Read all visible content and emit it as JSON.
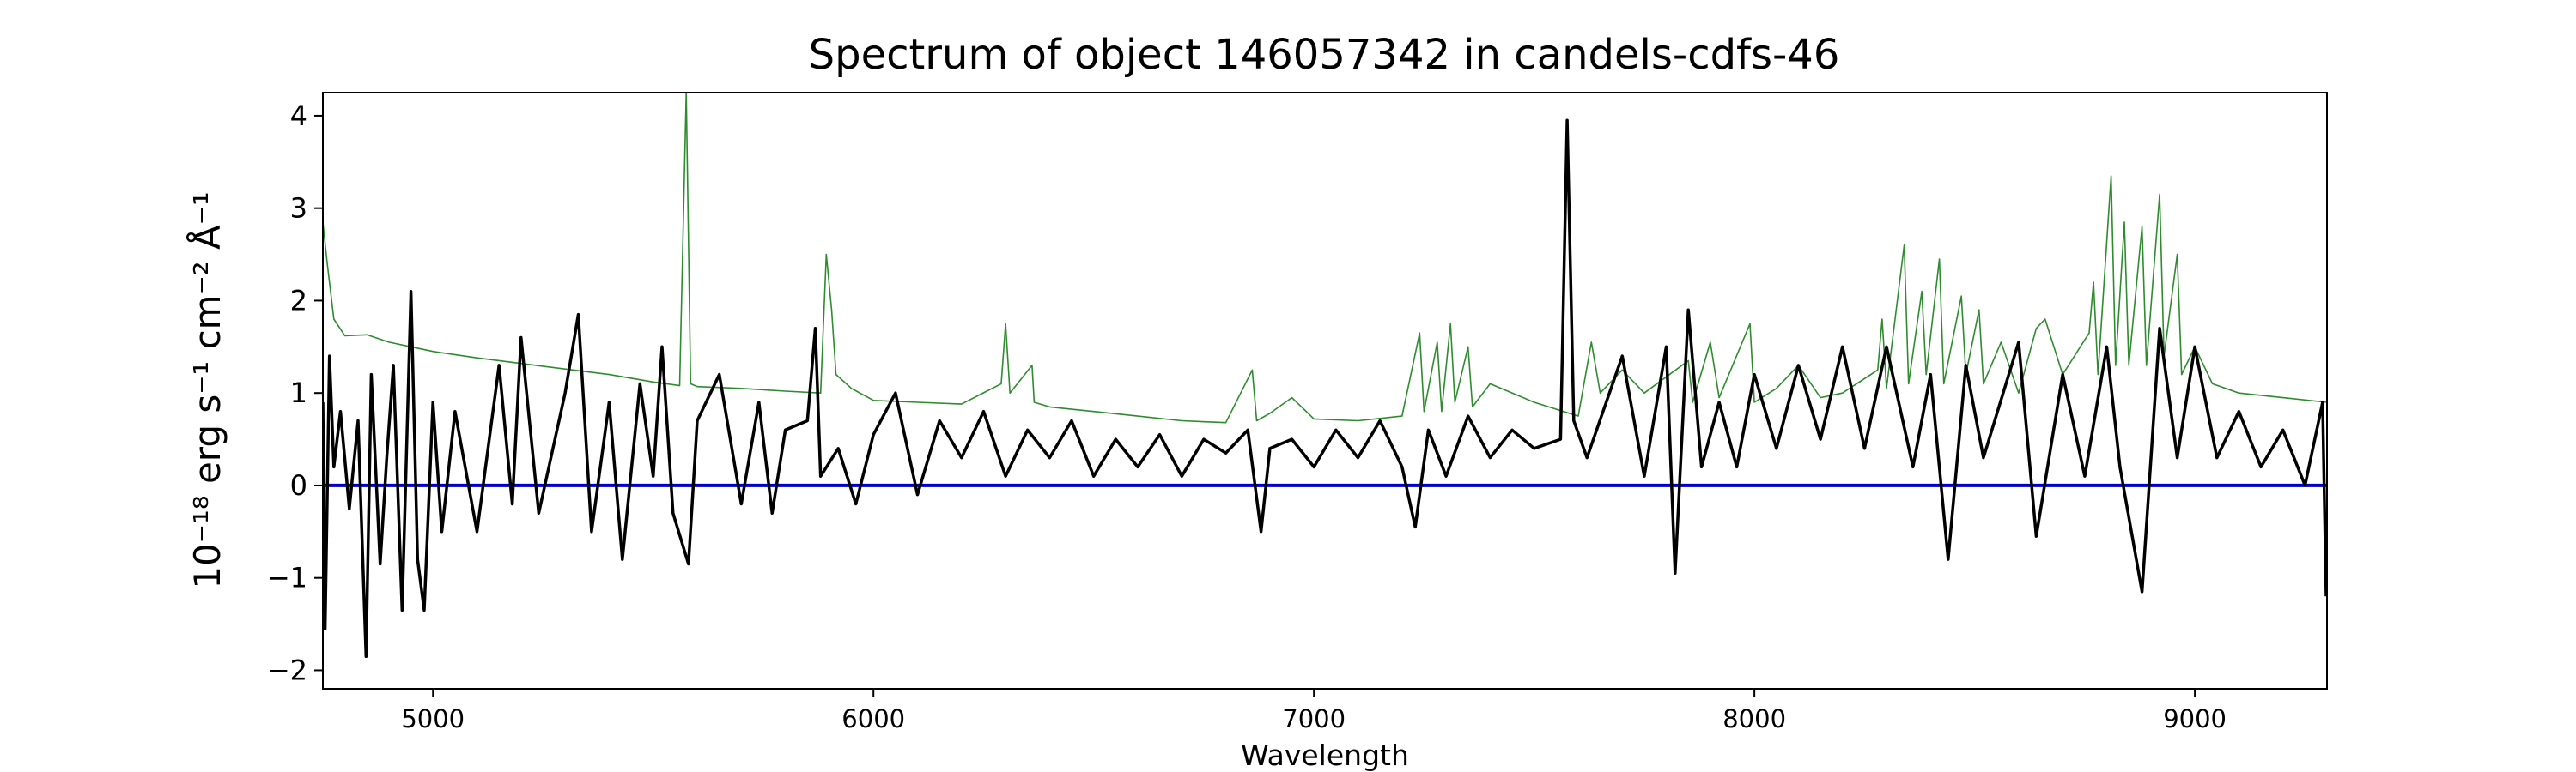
{
  "chart_data": {
    "type": "line",
    "title": "Spectrum of object 146057342 in candels-cdfs-46",
    "xlabel": "Wavelength",
    "ylabel": "10⁻¹⁸ erg s⁻¹ cm⁻² Å⁻¹",
    "xlim": [
      4750,
      9300
    ],
    "ylim": [
      -2.2,
      4.25
    ],
    "xticks": [
      5000,
      6000,
      7000,
      8000,
      9000
    ],
    "yticks": [
      -2,
      -1,
      0,
      1,
      2,
      3,
      4
    ],
    "grid": false,
    "legend": "none",
    "series": [
      {
        "role": "model/sky",
        "color": "#2e8b2e",
        "points": [
          [
            4750,
            2.85
          ],
          [
            4760,
            2.4
          ],
          [
            4775,
            1.8
          ],
          [
            4800,
            1.62
          ],
          [
            4850,
            1.63
          ],
          [
            4900,
            1.55
          ],
          [
            4950,
            1.5
          ],
          [
            5000,
            1.45
          ],
          [
            5100,
            1.38
          ],
          [
            5200,
            1.32
          ],
          [
            5300,
            1.26
          ],
          [
            5400,
            1.2
          ],
          [
            5500,
            1.12
          ],
          [
            5560,
            1.08
          ],
          [
            5575,
            4.25
          ],
          [
            5585,
            1.1
          ],
          [
            5600,
            1.07
          ],
          [
            5700,
            1.05
          ],
          [
            5800,
            1.02
          ],
          [
            5880,
            1.0
          ],
          [
            5893,
            2.5
          ],
          [
            5905,
            1.9
          ],
          [
            5915,
            1.2
          ],
          [
            5950,
            1.05
          ],
          [
            6000,
            0.92
          ],
          [
            6100,
            0.9
          ],
          [
            6200,
            0.88
          ],
          [
            6290,
            1.1
          ],
          [
            6300,
            1.75
          ],
          [
            6310,
            1.0
          ],
          [
            6360,
            1.3
          ],
          [
            6365,
            0.9
          ],
          [
            6400,
            0.85
          ],
          [
            6500,
            0.8
          ],
          [
            6600,
            0.75
          ],
          [
            6700,
            0.7
          ],
          [
            6800,
            0.68
          ],
          [
            6860,
            1.25
          ],
          [
            6870,
            0.7
          ],
          [
            6900,
            0.78
          ],
          [
            6950,
            0.95
          ],
          [
            7000,
            0.72
          ],
          [
            7100,
            0.7
          ],
          [
            7200,
            0.75
          ],
          [
            7240,
            1.65
          ],
          [
            7250,
            0.8
          ],
          [
            7280,
            1.55
          ],
          [
            7290,
            0.8
          ],
          [
            7310,
            1.75
          ],
          [
            7320,
            0.9
          ],
          [
            7350,
            1.5
          ],
          [
            7360,
            0.85
          ],
          [
            7400,
            1.1
          ],
          [
            7500,
            0.9
          ],
          [
            7600,
            0.75
          ],
          [
            7630,
            1.55
          ],
          [
            7650,
            1.0
          ],
          [
            7700,
            1.25
          ],
          [
            7750,
            1.0
          ],
          [
            7850,
            1.35
          ],
          [
            7860,
            0.9
          ],
          [
            7900,
            1.55
          ],
          [
            7920,
            0.95
          ],
          [
            7990,
            1.75
          ],
          [
            8000,
            0.9
          ],
          [
            8050,
            1.05
          ],
          [
            8100,
            1.3
          ],
          [
            8150,
            0.95
          ],
          [
            8200,
            1.0
          ],
          [
            8280,
            1.25
          ],
          [
            8290,
            1.8
          ],
          [
            8300,
            1.05
          ],
          [
            8340,
            2.6
          ],
          [
            8350,
            1.1
          ],
          [
            8380,
            2.1
          ],
          [
            8390,
            1.2
          ],
          [
            8420,
            2.45
          ],
          [
            8430,
            1.1
          ],
          [
            8470,
            2.05
          ],
          [
            8480,
            1.2
          ],
          [
            8510,
            1.9
          ],
          [
            8520,
            1.1
          ],
          [
            8560,
            1.55
          ],
          [
            8600,
            1.0
          ],
          [
            8640,
            1.7
          ],
          [
            8660,
            1.8
          ],
          [
            8700,
            1.2
          ],
          [
            8760,
            1.65
          ],
          [
            8770,
            2.2
          ],
          [
            8780,
            1.2
          ],
          [
            8810,
            3.35
          ],
          [
            8820,
            1.3
          ],
          [
            8840,
            2.85
          ],
          [
            8850,
            1.3
          ],
          [
            8880,
            2.8
          ],
          [
            8890,
            1.3
          ],
          [
            8920,
            3.15
          ],
          [
            8930,
            1.4
          ],
          [
            8960,
            2.5
          ],
          [
            8970,
            1.2
          ],
          [
            9000,
            1.5
          ],
          [
            9040,
            1.1
          ],
          [
            9100,
            1.0
          ],
          [
            9200,
            0.95
          ],
          [
            9300,
            0.9
          ]
        ]
      },
      {
        "role": "zero line",
        "color": "#0000cc",
        "points": [
          [
            4750,
            0
          ],
          [
            9300,
            0
          ]
        ]
      },
      {
        "role": "flux",
        "color": "#000000",
        "points": [
          [
            4750,
            0.9
          ],
          [
            4755,
            -1.55
          ],
          [
            4765,
            1.4
          ],
          [
            4775,
            0.2
          ],
          [
            4790,
            0.8
          ],
          [
            4810,
            -0.25
          ],
          [
            4830,
            0.7
          ],
          [
            4848,
            -1.85
          ],
          [
            4860,
            1.2
          ],
          [
            4880,
            -0.85
          ],
          [
            4895,
            0.3
          ],
          [
            4910,
            1.3
          ],
          [
            4930,
            -1.35
          ],
          [
            4950,
            2.1
          ],
          [
            4965,
            -0.8
          ],
          [
            4980,
            -1.35
          ],
          [
            5000,
            0.9
          ],
          [
            5020,
            -0.5
          ],
          [
            5050,
            0.8
          ],
          [
            5100,
            -0.5
          ],
          [
            5150,
            1.3
          ],
          [
            5180,
            -0.2
          ],
          [
            5200,
            1.6
          ],
          [
            5240,
            -0.3
          ],
          [
            5300,
            1.0
          ],
          [
            5330,
            1.85
          ],
          [
            5360,
            -0.5
          ],
          [
            5400,
            0.9
          ],
          [
            5430,
            -0.8
          ],
          [
            5470,
            1.1
          ],
          [
            5500,
            0.1
          ],
          [
            5520,
            1.5
          ],
          [
            5545,
            -0.3
          ],
          [
            5580,
            -0.85
          ],
          [
            5600,
            0.7
          ],
          [
            5650,
            1.2
          ],
          [
            5700,
            -0.2
          ],
          [
            5740,
            0.9
          ],
          [
            5770,
            -0.3
          ],
          [
            5800,
            0.6
          ],
          [
            5850,
            0.7
          ],
          [
            5868,
            1.7
          ],
          [
            5880,
            0.1
          ],
          [
            5920,
            0.4
          ],
          [
            5960,
            -0.2
          ],
          [
            6000,
            0.55
          ],
          [
            6050,
            1.0
          ],
          [
            6100,
            -0.1
          ],
          [
            6150,
            0.7
          ],
          [
            6200,
            0.3
          ],
          [
            6250,
            0.8
          ],
          [
            6300,
            0.1
          ],
          [
            6350,
            0.6
          ],
          [
            6400,
            0.3
          ],
          [
            6450,
            0.7
          ],
          [
            6500,
            0.1
          ],
          [
            6550,
            0.5
          ],
          [
            6600,
            0.2
          ],
          [
            6650,
            0.55
          ],
          [
            6700,
            0.1
          ],
          [
            6750,
            0.5
          ],
          [
            6800,
            0.35
          ],
          [
            6850,
            0.6
          ],
          [
            6880,
            -0.5
          ],
          [
            6900,
            0.4
          ],
          [
            6950,
            0.5
          ],
          [
            7000,
            0.2
          ],
          [
            7050,
            0.6
          ],
          [
            7100,
            0.3
          ],
          [
            7150,
            0.7
          ],
          [
            7200,
            0.2
          ],
          [
            7230,
            -0.45
          ],
          [
            7260,
            0.6
          ],
          [
            7300,
            0.1
          ],
          [
            7350,
            0.75
          ],
          [
            7400,
            0.3
          ],
          [
            7450,
            0.6
          ],
          [
            7500,
            0.4
          ],
          [
            7560,
            0.5
          ],
          [
            7575,
            3.95
          ],
          [
            7590,
            0.7
          ],
          [
            7620,
            0.3
          ],
          [
            7700,
            1.4
          ],
          [
            7750,
            0.1
          ],
          [
            7800,
            1.5
          ],
          [
            7820,
            -0.95
          ],
          [
            7850,
            1.9
          ],
          [
            7880,
            0.2
          ],
          [
            7920,
            0.9
          ],
          [
            7960,
            0.2
          ],
          [
            8000,
            1.2
          ],
          [
            8050,
            0.4
          ],
          [
            8100,
            1.3
          ],
          [
            8150,
            0.5
          ],
          [
            8200,
            1.5
          ],
          [
            8250,
            0.4
          ],
          [
            8300,
            1.5
          ],
          [
            8360,
            0.2
          ],
          [
            8400,
            1.2
          ],
          [
            8440,
            -0.8
          ],
          [
            8480,
            1.3
          ],
          [
            8520,
            0.3
          ],
          [
            8600,
            1.55
          ],
          [
            8640,
            -0.55
          ],
          [
            8700,
            1.2
          ],
          [
            8750,
            0.1
          ],
          [
            8800,
            1.5
          ],
          [
            8830,
            0.2
          ],
          [
            8880,
            -1.15
          ],
          [
            8920,
            1.7
          ],
          [
            8960,
            0.3
          ],
          [
            9000,
            1.5
          ],
          [
            9050,
            0.3
          ],
          [
            9100,
            0.8
          ],
          [
            9150,
            0.2
          ],
          [
            9200,
            0.6
          ],
          [
            9250,
            0.0
          ],
          [
            9290,
            0.9
          ],
          [
            9298,
            -1.2
          ]
        ]
      }
    ]
  }
}
